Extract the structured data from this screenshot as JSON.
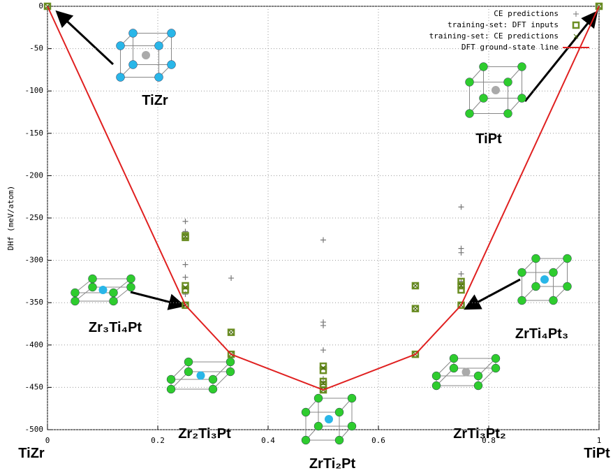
{
  "chart_data": {
    "type": "scatter",
    "ylabel": "DHf (meV/atom)",
    "xlim": [
      0,
      1
    ],
    "ylim": [
      -500,
      0
    ],
    "xticks": [
      0,
      0.2,
      0.4,
      0.6,
      0.8,
      1
    ],
    "yticks": [
      0,
      -50,
      -100,
      -150,
      -200,
      -250,
      -300,
      -350,
      -400,
      -450,
      -500
    ],
    "grid": true,
    "legend": "top-right",
    "x_end_labels": [
      "TiZr",
      "TiPt"
    ],
    "annotations": [
      "TiZr",
      "TiPt",
      "Zr₃Ti₄Pt",
      "Zr₂Ti₃Pt",
      "ZrTi₂Pt",
      "ZrTi₃Pt₂",
      "ZrTi₄Pt₃"
    ],
    "series": [
      {
        "name": "CE predictions",
        "marker": "plus",
        "color": "#777777",
        "x": [
          0.25,
          0.25,
          0.25,
          0.25,
          0.25,
          0.333,
          0.5,
          0.5,
          0.5,
          0.5,
          0.5,
          0.75,
          0.75,
          0.75,
          0.75,
          0.75
        ],
        "values": [
          -254,
          -266,
          -305,
          -320,
          -340,
          -321,
          -276,
          -373,
          -377,
          -406,
          -440,
          -237,
          -286,
          -291,
          -316,
          -325
        ]
      },
      {
        "name": "training-set: DFT inputs",
        "marker": "square",
        "color": "#6b8e23",
        "x": [
          0,
          0.25,
          0.25,
          0.25,
          0.25,
          0.25,
          0.333,
          0.333,
          0.5,
          0.5,
          0.5,
          0.5,
          0.5,
          0.667,
          0.667,
          0.667,
          0.75,
          0.75,
          0.75,
          0.75,
          1
        ],
        "values": [
          0,
          -271,
          -273,
          -330,
          -335,
          -353,
          -385,
          -411,
          -425,
          -430,
          -443,
          -447,
          -453,
          -330,
          -357,
          -411,
          -325,
          -330,
          -335,
          -353,
          0
        ]
      },
      {
        "name": "training-set: CE predictions",
        "marker": "cross",
        "color": "#4a6b10",
        "x": [
          0,
          0.25,
          0.25,
          0.25,
          0.333,
          0.333,
          0.5,
          0.5,
          0.5,
          0.667,
          0.667,
          0.667,
          0.75,
          0.75,
          1
        ],
        "values": [
          0,
          -272,
          -332,
          -353,
          -385,
          -411,
          -427,
          -445,
          -453,
          -330,
          -357,
          -411,
          -330,
          -353,
          0
        ]
      },
      {
        "name": "DFT ground-state line",
        "marker": "line",
        "color": "#e02020",
        "x": [
          0,
          0.25,
          0.333,
          0.5,
          0.667,
          0.75,
          1
        ],
        "values": [
          0,
          -353,
          -411,
          -453,
          -411,
          -353,
          0
        ]
      }
    ]
  }
}
